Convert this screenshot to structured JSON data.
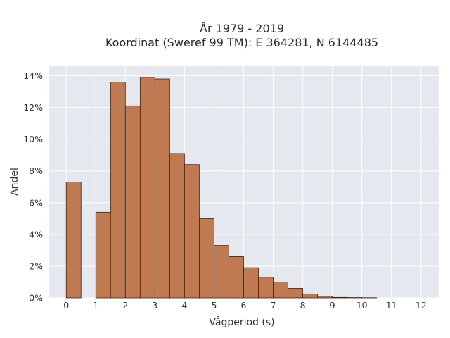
{
  "chart_data": {
    "type": "bar",
    "title_line1": "År 1979 - 2019",
    "title_line2": "Koordinat (Sweref 99 TM): E 364281, N 6144485",
    "xlabel": "Vågperiod (s)",
    "ylabel": "Andel",
    "x_ticks": [
      "0",
      "1",
      "2",
      "3",
      "4",
      "5",
      "6",
      "7",
      "8",
      "9",
      "10",
      "11",
      "12"
    ],
    "y_ticks": [
      "0%",
      "2%",
      "4%",
      "6%",
      "8%",
      "10%",
      "12%",
      "14%"
    ],
    "xlim": [
      -0.6,
      12.6
    ],
    "ylim": [
      0,
      14.6
    ],
    "bin_width": 0.5,
    "bins": [
      {
        "x0": 0.0,
        "value": 7.3
      },
      {
        "x0": 1.0,
        "value": 5.4
      },
      {
        "x0": 1.5,
        "value": 13.6
      },
      {
        "x0": 2.0,
        "value": 12.1
      },
      {
        "x0": 2.5,
        "value": 13.9
      },
      {
        "x0": 3.0,
        "value": 13.8
      },
      {
        "x0": 3.5,
        "value": 9.1
      },
      {
        "x0": 4.0,
        "value": 8.4
      },
      {
        "x0": 4.5,
        "value": 5.0
      },
      {
        "x0": 5.0,
        "value": 3.3
      },
      {
        "x0": 5.5,
        "value": 2.6
      },
      {
        "x0": 6.0,
        "value": 1.9
      },
      {
        "x0": 6.5,
        "value": 1.3
      },
      {
        "x0": 7.0,
        "value": 1.0
      },
      {
        "x0": 7.5,
        "value": 0.6
      },
      {
        "x0": 8.0,
        "value": 0.25
      },
      {
        "x0": 8.5,
        "value": 0.1
      },
      {
        "x0": 9.0,
        "value": 0.03
      },
      {
        "x0": 9.5,
        "value": 0.02
      },
      {
        "x0": 10.0,
        "value": 0.01
      }
    ],
    "grid": true,
    "colors": {
      "bar_fill": "#c07a52",
      "bar_edge": "#3d2416",
      "plot_bg": "#e6e8f0",
      "grid": "#ffffff"
    }
  }
}
